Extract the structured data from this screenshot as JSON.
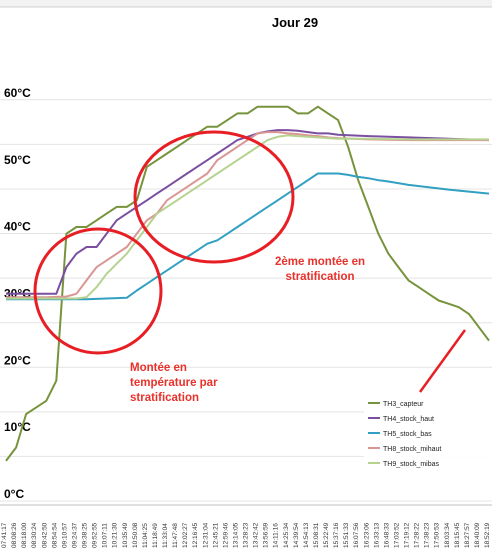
{
  "chart_data": {
    "type": "line",
    "title": "Jour 29",
    "xlabel": "",
    "ylabel": "",
    "ylim": [
      0,
      60
    ],
    "yticks": [
      0,
      10,
      20,
      30,
      40,
      50,
      60
    ],
    "ytick_labels": [
      "0°C",
      "10°C",
      "20°C",
      "30°C",
      "40°C",
      "50°C",
      "60°C"
    ],
    "grid": true,
    "legend_position": "bottom-right",
    "x_categories": [
      "07:41:17",
      "08:08:26",
      "08:18:00",
      "08:30:24",
      "08:42:50",
      "08:54:54",
      "09:10:57",
      "09:24:37",
      "09:38:25",
      "09:52:55",
      "10:07:11",
      "10:21:30",
      "10:35:49",
      "10:50:08",
      "11:04:25",
      "11:18:49",
      "11:33:04",
      "11:47:48",
      "12:02:27",
      "12:16:45",
      "12:31:04",
      "12:45:21",
      "12:59:46",
      "13:14:05",
      "13:28:23",
      "13:42:42",
      "13:56:59",
      "14:11:16",
      "14:25:34",
      "14:39:54",
      "14:54:13",
      "15:08:31",
      "15:22:49",
      "15:37:16",
      "15:51:33",
      "16:07:56",
      "16:23:06",
      "16:33:13",
      "16:48:33",
      "17:03:52",
      "17:19:12",
      "17:28:22",
      "17:38:23",
      "17:50:53",
      "18:03:34",
      "18:15:45",
      "18:27:57",
      "18:40:09",
      "18:52:19"
    ],
    "x_index": [
      0,
      48
    ],
    "series": [
      {
        "name": "TH3_capteur",
        "color": "#77933c",
        "x": [
          0,
          1,
          2,
          3,
          4,
          5,
          6,
          7,
          8,
          9,
          10,
          11,
          12,
          13,
          14,
          15,
          16,
          17,
          18,
          19,
          20,
          21,
          22,
          23,
          24,
          25,
          26,
          27,
          28,
          29,
          30,
          31,
          32,
          33,
          34,
          35,
          36,
          37,
          38,
          39,
          40,
          41,
          42,
          43,
          44,
          45,
          46,
          47,
          48
        ],
        "y": [
          6,
          8,
          13,
          14,
          15,
          18,
          40,
          41,
          41,
          42,
          43,
          44,
          44,
          45,
          50,
          51,
          52,
          53,
          54,
          55,
          56,
          56,
          57,
          58,
          58,
          59,
          59,
          59,
          59,
          58,
          58,
          59,
          58,
          57,
          53,
          48,
          44,
          40,
          37,
          35,
          33,
          32,
          31,
          30,
          29.5,
          29,
          28,
          26,
          24
        ]
      },
      {
        "name": "TH4_stock_haut",
        "color": "#7a4fa0",
        "x": [
          0,
          4,
          5,
          6,
          7,
          8,
          9,
          10,
          11,
          12,
          13,
          14,
          15,
          16,
          17,
          18,
          19,
          20,
          21,
          22,
          23,
          24,
          25,
          26,
          27,
          28,
          29,
          30,
          31,
          32,
          33,
          36,
          40,
          44,
          48
        ],
        "y": [
          31,
          31,
          31,
          35,
          37,
          38,
          38,
          40,
          42,
          43,
          44,
          45,
          46,
          47,
          48,
          49,
          50,
          51,
          52,
          53,
          54,
          54.5,
          55,
          55.3,
          55.5,
          55.5,
          55.4,
          55.2,
          55,
          55,
          54.8,
          54.6,
          54.4,
          54.2,
          54
        ]
      },
      {
        "name": "TH5_stock_bas",
        "color": "#31a0c2",
        "x": [
          0,
          4,
          8,
          12,
          13,
          14,
          15,
          16,
          17,
          18,
          19,
          20,
          21,
          22,
          23,
          24,
          25,
          26,
          27,
          28,
          29,
          30,
          31,
          32,
          33,
          34,
          35,
          36,
          37,
          38,
          40,
          44,
          48
        ],
        "y": [
          30.2,
          30.2,
          30.2,
          30.4,
          31.5,
          32.5,
          33.5,
          34.5,
          35.5,
          36.5,
          37.5,
          38.5,
          39,
          40,
          41,
          42,
          43,
          44,
          45,
          46,
          47,
          48,
          49,
          49,
          49,
          48.8,
          48.5,
          48.3,
          48,
          47.8,
          47.3,
          46.6,
          46
        ]
      },
      {
        "name": "TH8_stock_mihaut",
        "color": "#d99694",
        "x": [
          0,
          4,
          6,
          7,
          8,
          9,
          10,
          11,
          12,
          13,
          14,
          15,
          16,
          17,
          18,
          19,
          20,
          21,
          22,
          23,
          24,
          25,
          26,
          27,
          28,
          29,
          30,
          31,
          32,
          33,
          36,
          40,
          44,
          48
        ],
        "y": [
          30.5,
          30.5,
          30.6,
          31,
          33,
          35,
          36,
          37,
          38,
          40,
          42,
          43,
          45,
          46,
          47,
          48,
          49,
          51,
          52,
          53,
          54,
          55,
          55.2,
          55.2,
          55,
          54.9,
          54.7,
          54.6,
          54.4,
          54.3,
          54.1,
          54,
          54,
          54
        ]
      },
      {
        "name": "TH9_stock_mibas",
        "color": "#b5d38f",
        "x": [
          0,
          4,
          7,
          8,
          9,
          10,
          11,
          12,
          13,
          14,
          15,
          16,
          17,
          18,
          19,
          20,
          21,
          22,
          23,
          24,
          25,
          26,
          27,
          28,
          29,
          30,
          31,
          32,
          33,
          36,
          40,
          44,
          48
        ],
        "y": [
          30.3,
          30.3,
          30.3,
          30.5,
          32,
          34,
          35.5,
          37,
          39,
          41,
          43,
          44,
          45,
          46,
          47,
          48,
          49,
          50,
          51,
          52,
          53,
          54,
          54.5,
          54.7,
          54.6,
          54.5,
          54.4,
          54.3,
          54.2,
          54.2,
          54.1,
          54.1,
          54.1
        ]
      }
    ],
    "annotations": [
      {
        "text": [
          "2ème montée en",
          "stratification"
        ],
        "color": "#e8312a"
      },
      {
        "text": [
          "Montée en",
          "température par",
          "stratification"
        ],
        "color": "#e8312a"
      }
    ]
  }
}
